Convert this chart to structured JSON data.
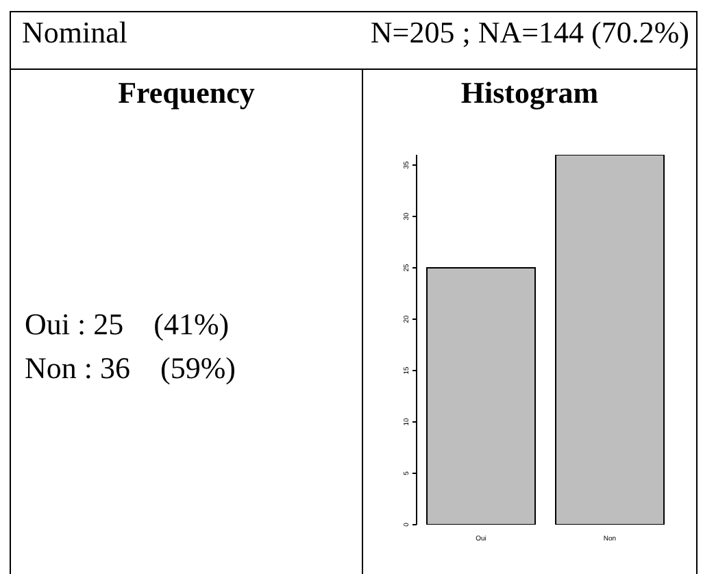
{
  "chart_data": {
    "type": "bar",
    "title": "Nominal",
    "subtitle": "N=205 ; NA=144 (70.2%)",
    "annotations": [
      "Frequency",
      "Histogram",
      "Oui : 25    (41%)",
      "Non : 36    (59%)"
    ],
    "categories": [
      "Oui",
      "Non"
    ],
    "values": [
      25,
      36
    ],
    "color": "#bebebe",
    "ylim": [
      0,
      36
    ],
    "yticks": [
      0,
      5,
      10,
      15,
      20,
      25,
      30,
      35
    ],
    "grid": false
  }
}
